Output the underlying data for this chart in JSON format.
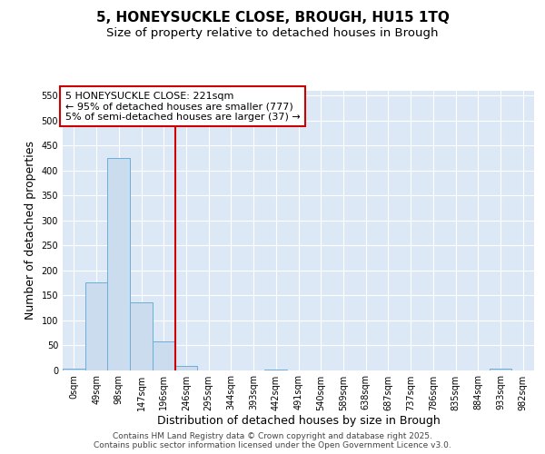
{
  "title": "5, HONEYSUCKLE CLOSE, BROUGH, HU15 1TQ",
  "subtitle": "Size of property relative to detached houses in Brough",
  "xlabel": "Distribution of detached houses by size in Brough",
  "ylabel": "Number of detached properties",
  "categories": [
    "0sqm",
    "49sqm",
    "98sqm",
    "147sqm",
    "196sqm",
    "246sqm",
    "295sqm",
    "344sqm",
    "393sqm",
    "442sqm",
    "491sqm",
    "540sqm",
    "589sqm",
    "638sqm",
    "687sqm",
    "737sqm",
    "786sqm",
    "835sqm",
    "884sqm",
    "933sqm",
    "982sqm"
  ],
  "bar_values": [
    3,
    175,
    425,
    135,
    57,
    8,
    0,
    0,
    0,
    1,
    0,
    0,
    0,
    0,
    0,
    0,
    0,
    0,
    0,
    2,
    0
  ],
  "bar_color": "#ccdcef",
  "bar_edge_color": "#6aaed6",
  "ylim": [
    0,
    560
  ],
  "yticks": [
    0,
    50,
    100,
    150,
    200,
    250,
    300,
    350,
    400,
    450,
    500,
    550
  ],
  "vline_color": "#cc0000",
  "annotation_text": "5 HONEYSUCKLE CLOSE: 221sqm\n← 95% of detached houses are smaller (777)\n5% of semi-detached houses are larger (37) →",
  "annotation_box_color": "#cc0000",
  "footer_text": "Contains HM Land Registry data © Crown copyright and database right 2025.\nContains public sector information licensed under the Open Government Licence v3.0.",
  "fig_bg_color": "#ffffff",
  "plot_bg_color": "#dce8f5",
  "grid_color": "#ffffff",
  "title_fontsize": 11,
  "subtitle_fontsize": 9.5,
  "tick_fontsize": 7,
  "label_fontsize": 9,
  "footer_fontsize": 6.5
}
